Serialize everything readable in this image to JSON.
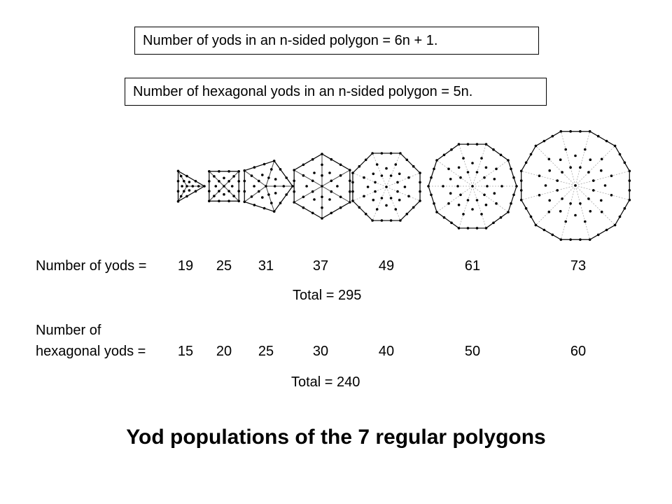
{
  "formulas": {
    "yods": "Number of yods in an n-sided polygon = 6n + 1.",
    "hexagonal_yods": "Number of hexagonal yods in an n-sided polygon = 5n."
  },
  "polygons": [
    {
      "name": "triangle",
      "sides": 3
    },
    {
      "name": "square",
      "sides": 4
    },
    {
      "name": "pentagon",
      "sides": 5
    },
    {
      "name": "hexagon",
      "sides": 6
    },
    {
      "name": "octagon",
      "sides": 8
    },
    {
      "name": "decagon",
      "sides": 10
    },
    {
      "name": "dodecagon",
      "sides": 12
    }
  ],
  "yods_row": {
    "label": "Number of yods =",
    "values": [
      "19",
      "25",
      "31",
      "37",
      "49",
      "61",
      "73"
    ],
    "total": "Total = 295"
  },
  "hexagonal_row": {
    "label_line1": "Number of",
    "label_line2": "hexagonal yods =",
    "values": [
      "15",
      "20",
      "25",
      "30",
      "40",
      "50",
      "60"
    ],
    "total": "Total = 240"
  },
  "caption": "Yod populations of the 7 regular polygons"
}
